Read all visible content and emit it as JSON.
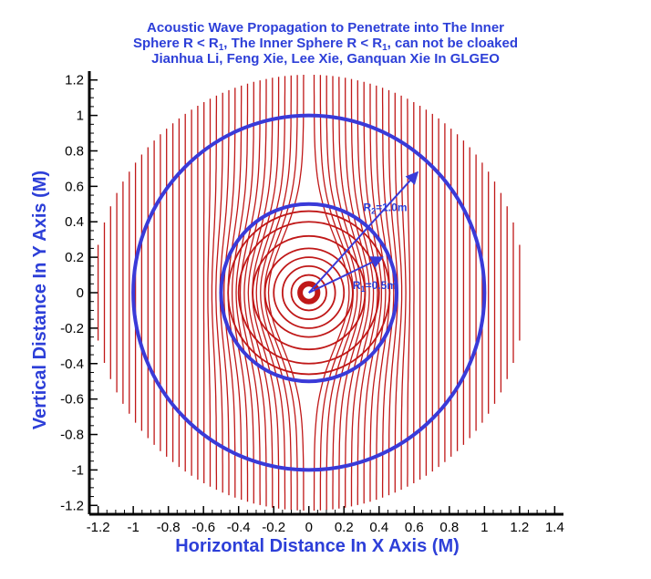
{
  "chart_data": {
    "type": "line",
    "title": {
      "line1": "Acoustic  Wave Propagation to Penetrate  into The Inner",
      "line2_pre": "Sphere  R <  R",
      "line2_sub1": "1",
      "line2_mid": ", The Inner Sphere R < R",
      "line2_sub2": "1",
      "line2_post": ", can not be cloaked",
      "line3": "Jianhua  Li, Feng Xie, Lee Xie, Ganquan Xie In GLGEO"
    },
    "xlabel": "Horizontal Distance In X Axis (M)",
    "ylabel": "Vertical Distance In Y Axis (M)",
    "xlim": [
      -1.25,
      1.45
    ],
    "ylim": [
      -1.25,
      1.25
    ],
    "x_ticks": [
      -1.2,
      -1,
      -0.8,
      -0.6,
      -0.4,
      -0.2,
      0,
      0.2,
      0.4,
      0.6,
      0.8,
      1,
      1.2,
      1.4
    ],
    "x_tick_labels": [
      "-1.2",
      "-1",
      "-0.8",
      "-0.6",
      "-0.4",
      "-0.2",
      "0",
      "0.2",
      "0.4",
      "0.6",
      "0.8",
      "1",
      "1.2",
      "1.4"
    ],
    "y_ticks": [
      -1.2,
      -1,
      -0.8,
      -0.6,
      -0.4,
      -0.2,
      0,
      0.2,
      0.4,
      0.6,
      0.8,
      1,
      1.2
    ],
    "y_tick_labels": [
      "-1.2",
      "-1",
      "-0.8",
      "-0.6",
      "-0.4",
      "-0.2",
      "0",
      "0.2",
      "0.4",
      "0.6",
      "0.8",
      "1",
      "1.2"
    ],
    "circles": [
      {
        "name": "outer-sphere",
        "radius": 1.0,
        "color": "#3a3ad8"
      },
      {
        "name": "inner-sphere",
        "radius": 0.5,
        "color": "#3a3ad8"
      }
    ],
    "inner_ring_radii": [
      0.05,
      0.1,
      0.15,
      0.2,
      0.25,
      0.32,
      0.4,
      0.46
    ],
    "ray_domain_radius": 1.23,
    "ray_count_per_side": 34,
    "ray_color": "#c01818",
    "arrows": [
      {
        "name": "r2-arrow",
        "from": [
          0,
          0
        ],
        "to": [
          0.62,
          0.68
        ],
        "label": "R",
        "label_sub": "2",
        "label_post": "=1.0m"
      },
      {
        "name": "r1-arrow",
        "from": [
          0,
          0
        ],
        "to": [
          0.42,
          0.2
        ],
        "label": "R",
        "label_sub": "1",
        "label_post": "=0.5m"
      }
    ]
  }
}
